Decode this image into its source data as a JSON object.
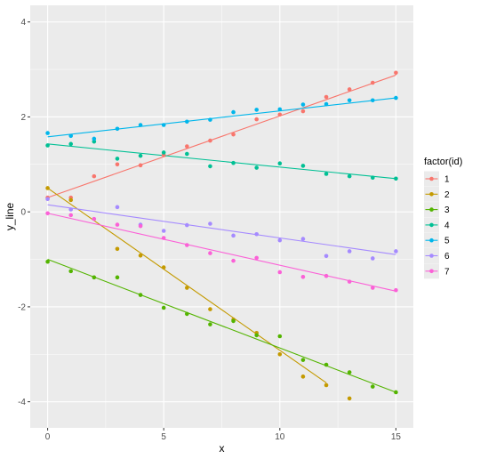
{
  "chart_data": {
    "type": "scatter",
    "xlabel": "x",
    "ylabel": "y_line",
    "xlim": [
      -0.75,
      15.75
    ],
    "ylim": [
      -4.55,
      4.35
    ],
    "x_ticks": [
      0,
      5,
      10,
      15
    ],
    "y_ticks": [
      -4,
      -2,
      0,
      2,
      4
    ],
    "grid": true,
    "legend_title": "factor(id)",
    "legend_position": "right",
    "series": [
      {
        "name": "1",
        "color": "#F8766D",
        "line": [
          [
            0,
            0.3
          ],
          [
            15,
            2.88
          ]
        ],
        "points": [
          [
            0,
            0.3
          ],
          [
            1,
            0.3
          ],
          [
            2,
            0.75
          ],
          [
            3,
            1.0
          ],
          [
            4,
            0.98
          ],
          [
            5,
            1.2
          ],
          [
            6,
            1.38
          ],
          [
            7,
            1.5
          ],
          [
            8,
            1.63
          ],
          [
            9,
            1.95
          ],
          [
            10,
            2.05
          ],
          [
            11,
            2.12
          ],
          [
            12,
            2.42
          ],
          [
            13,
            2.58
          ],
          [
            14,
            2.72
          ],
          [
            15,
            2.93
          ]
        ]
      },
      {
        "name": "2",
        "color": "#C49A00",
        "line": [
          [
            0,
            0.5
          ],
          [
            12,
            -3.6
          ]
        ],
        "points": [
          [
            0,
            0.5
          ],
          [
            1,
            0.25
          ],
          [
            3,
            -0.78
          ],
          [
            4,
            -0.92
          ],
          [
            5,
            -1.17
          ],
          [
            6,
            -1.6
          ],
          [
            7,
            -2.05
          ],
          [
            8,
            -2.27
          ],
          [
            9,
            -2.55
          ],
          [
            10,
            -3.0
          ],
          [
            11,
            -3.47
          ],
          [
            12,
            -3.65
          ],
          [
            13,
            -3.93
          ]
        ]
      },
      {
        "name": "3",
        "color": "#53B400",
        "line": [
          [
            0,
            -1.0
          ],
          [
            15,
            -3.8
          ]
        ],
        "points": [
          [
            0,
            -1.05
          ],
          [
            1,
            -1.25
          ],
          [
            2,
            -1.38
          ],
          [
            3,
            -1.38
          ],
          [
            4,
            -1.75
          ],
          [
            5,
            -2.02
          ],
          [
            6,
            -2.15
          ],
          [
            7,
            -2.37
          ],
          [
            8,
            -2.3
          ],
          [
            9,
            -2.6
          ],
          [
            10,
            -2.62
          ],
          [
            11,
            -3.12
          ],
          [
            12,
            -3.22
          ],
          [
            13,
            -3.38
          ],
          [
            14,
            -3.68
          ],
          [
            15,
            -3.8
          ]
        ]
      },
      {
        "name": "4",
        "color": "#00C094",
        "line": [
          [
            0,
            1.43
          ],
          [
            15,
            0.7
          ]
        ],
        "points": [
          [
            0,
            1.4
          ],
          [
            1,
            1.43
          ],
          [
            2,
            1.48
          ],
          [
            3,
            1.12
          ],
          [
            4,
            1.18
          ],
          [
            5,
            1.25
          ],
          [
            6,
            1.22
          ],
          [
            7,
            0.96
          ],
          [
            8,
            1.03
          ],
          [
            9,
            0.93
          ],
          [
            10,
            1.02
          ],
          [
            11,
            0.97
          ],
          [
            12,
            0.8
          ],
          [
            13,
            0.75
          ],
          [
            14,
            0.72
          ],
          [
            15,
            0.7
          ]
        ]
      },
      {
        "name": "5",
        "color": "#00B6EB",
        "line": [
          [
            0,
            1.58
          ],
          [
            15,
            2.4
          ]
        ],
        "points": [
          [
            0,
            1.66
          ],
          [
            1,
            1.6
          ],
          [
            2,
            1.54
          ],
          [
            3,
            1.75
          ],
          [
            4,
            1.83
          ],
          [
            5,
            1.83
          ],
          [
            6,
            1.9
          ],
          [
            7,
            1.94
          ],
          [
            8,
            2.1
          ],
          [
            9,
            2.15
          ],
          [
            10,
            2.16
          ],
          [
            11,
            2.26
          ],
          [
            12,
            2.27
          ],
          [
            13,
            2.35
          ],
          [
            14,
            2.35
          ],
          [
            15,
            2.4
          ]
        ]
      },
      {
        "name": "6",
        "color": "#A58AFF",
        "line": [
          [
            0,
            0.15
          ],
          [
            15,
            -0.9
          ]
        ],
        "points": [
          [
            0,
            0.27
          ],
          [
            1,
            0.05
          ],
          [
            3,
            0.1
          ],
          [
            4,
            -0.27
          ],
          [
            5,
            -0.4
          ],
          [
            6,
            -0.28
          ],
          [
            7,
            -0.25
          ],
          [
            8,
            -0.5
          ],
          [
            9,
            -0.47
          ],
          [
            10,
            -0.6
          ],
          [
            11,
            -0.57
          ],
          [
            12,
            -0.93
          ],
          [
            13,
            -0.83
          ],
          [
            14,
            -0.98
          ],
          [
            15,
            -0.83
          ]
        ]
      },
      {
        "name": "7",
        "color": "#FB61D7",
        "line": [
          [
            0,
            -0.03
          ],
          [
            15,
            -1.67
          ]
        ],
        "points": [
          [
            0,
            -0.03
          ],
          [
            1,
            -0.07
          ],
          [
            2,
            -0.15
          ],
          [
            3,
            -0.27
          ],
          [
            4,
            -0.3
          ],
          [
            5,
            -0.55
          ],
          [
            6,
            -0.7
          ],
          [
            7,
            -0.87
          ],
          [
            8,
            -1.03
          ],
          [
            9,
            -0.97
          ],
          [
            10,
            -1.27
          ],
          [
            11,
            -1.37
          ],
          [
            12,
            -1.35
          ],
          [
            13,
            -1.47
          ],
          [
            14,
            -1.6
          ],
          [
            15,
            -1.65
          ]
        ]
      }
    ]
  }
}
